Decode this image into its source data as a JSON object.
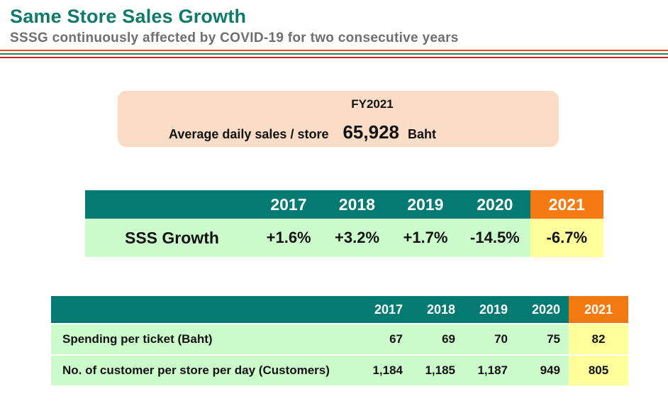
{
  "header": {
    "title": "Same Store Sales Growth",
    "subtitle": "SSSG continuously affected by COVID-19 for two consecutive years"
  },
  "summary": {
    "fiscal_year": "FY2021",
    "label": "Average daily sales / store",
    "value": "65,928",
    "unit": "Baht"
  },
  "sss_table": {
    "row_label": "SSS Growth",
    "years": [
      "2017",
      "2018",
      "2019",
      "2020",
      "2021"
    ],
    "values": [
      "+1.6%",
      "+3.2%",
      "+1.7%",
      "-14.5%",
      "-6.7%"
    ]
  },
  "ticket_table": {
    "years": [
      "2017",
      "2018",
      "2019",
      "2020",
      "2021"
    ],
    "rows": [
      {
        "label": "Spending per ticket (Baht)",
        "values": [
          "67",
          "69",
          "70",
          "75",
          "82"
        ]
      },
      {
        "label": "No. of customer per store per day (Customers)",
        "values": [
          "1,184",
          "1,185",
          "1,187",
          "949",
          "805"
        ]
      }
    ]
  },
  "colors": {
    "teal_header": "#047a73",
    "current_year_header": "#f27a11",
    "row_fill": "#ccfccc",
    "current_year_fill": "#ffff9c",
    "summary_fill": "#fbdcc7",
    "title_color": "#0f7a6a"
  }
}
